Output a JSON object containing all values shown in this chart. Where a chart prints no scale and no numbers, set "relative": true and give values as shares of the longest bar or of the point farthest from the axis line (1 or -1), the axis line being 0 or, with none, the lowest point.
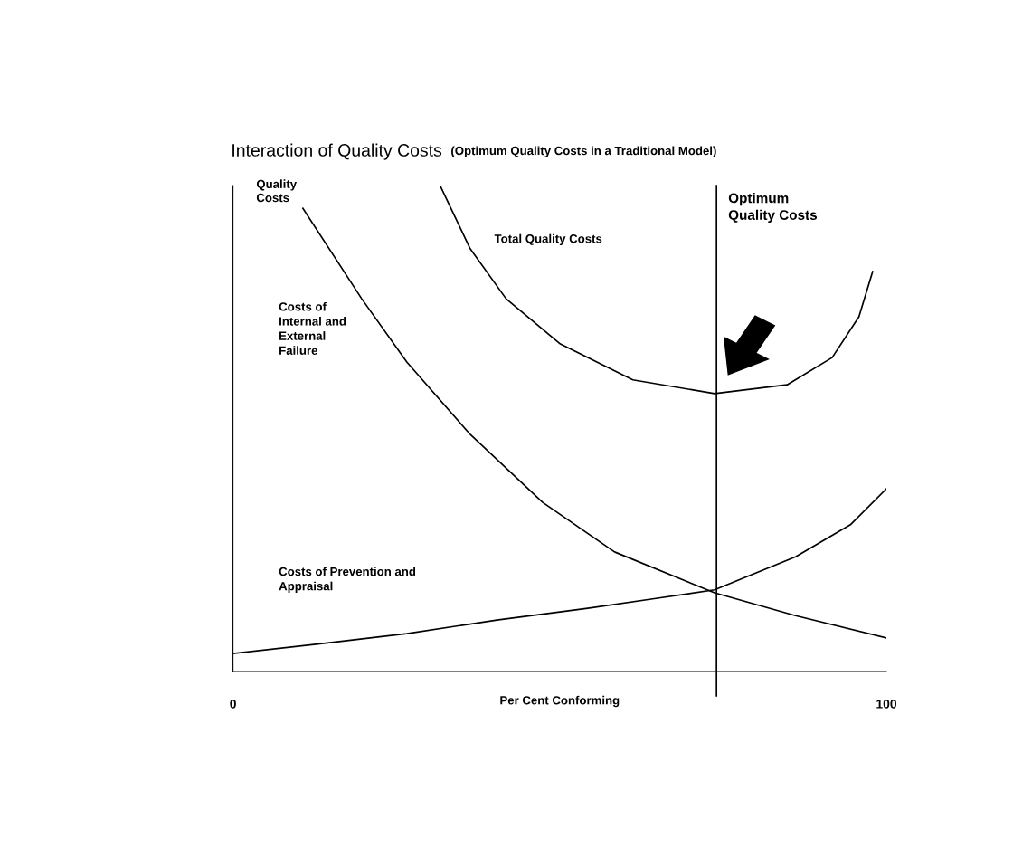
{
  "chart_data": {
    "type": "line",
    "relative": true,
    "title": "Interaction of Quality Costs",
    "subtitle": "(Optimum Quality Costs in a Traditional Model)",
    "xlabel": "Per Cent Conforming",
    "ylabel": "Quality\nCosts",
    "xlim": [
      0,
      100
    ],
    "xticks": [
      0,
      100
    ],
    "grid": false,
    "marker": "none",
    "line_style": "solid",
    "series": [
      {
        "color": "#000000",
        "x": [
          31.7,
          36.3,
          41.8,
          50.1,
          61.2,
          73.7,
          84.8,
          91.7,
          95.8,
          97.9
        ],
        "values": [
          1.0,
          0.87,
          0.767,
          0.674,
          0.6,
          0.572,
          0.59,
          0.646,
          0.73,
          0.823
        ]
      },
      {
        "color": "#000000",
        "x": [
          10.7,
          19.7,
          26.6,
          36.3,
          47.4,
          58.4,
          73.7,
          86.1,
          100
        ],
        "values": [
          0.953,
          0.767,
          0.637,
          0.488,
          0.348,
          0.246,
          0.162,
          0.115,
          0.069
        ]
      },
      {
        "color": "#000000",
        "x": [
          0,
          12.7,
          26.6,
          40.4,
          54.3,
          64.0,
          73.7,
          86.1,
          94.5,
          100
        ],
        "values": [
          0.037,
          0.056,
          0.078,
          0.106,
          0.13,
          0.149,
          0.168,
          0.236,
          0.302,
          0.376
        ]
      }
    ],
    "ref_lines": [
      {
        "axis": "x",
        "value": 74,
        "label": "Optimum\nQuality Costs",
        "color": "#000000"
      }
    ],
    "annotations": [
      "Total Quality Costs",
      "Costs of\nInternal and\nExternal\nFailure",
      "Costs of Prevention and\nAppraisal"
    ]
  }
}
